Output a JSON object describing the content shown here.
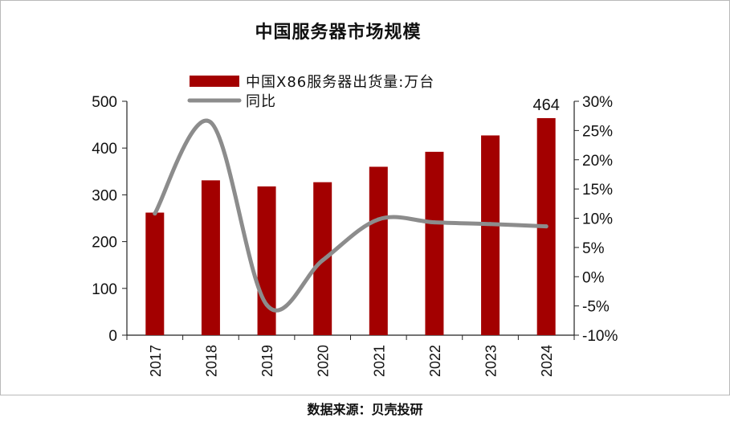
{
  "title": "中国服务器市场规模",
  "source": "数据来源：贝壳投研",
  "chart_data": {
    "type": "bar",
    "categories": [
      "2017",
      "2018",
      "2019",
      "2020",
      "2021",
      "2022",
      "2023",
      "2024"
    ],
    "series": [
      {
        "name": "中国X86服务器出货量:万台",
        "type": "bar",
        "axis": "left",
        "color": "#a30000",
        "values": [
          262,
          331,
          318,
          327,
          360,
          392,
          427,
          464
        ]
      },
      {
        "name": "同比",
        "type": "line",
        "axis": "right",
        "color": "#8c8c8c",
        "values": [
          0.108,
          0.264,
          -0.048,
          0.028,
          0.098,
          0.093,
          0.09,
          0.086
        ]
      }
    ],
    "data_labels": [
      {
        "category": "2024",
        "text": "464"
      }
    ],
    "y_left": {
      "min": 0,
      "max": 500,
      "ticks": [
        0,
        100,
        200,
        300,
        400,
        500
      ],
      "tick_labels": [
        "0",
        "100",
        "200",
        "300",
        "400",
        "500"
      ]
    },
    "y_right": {
      "min": -0.1,
      "max": 0.3,
      "ticks": [
        -0.1,
        -0.05,
        0,
        0.05,
        0.1,
        0.15,
        0.2,
        0.25,
        0.3
      ],
      "tick_labels": [
        "-10%",
        "-5%",
        "0%",
        "5%",
        "10%",
        "15%",
        "20%",
        "25%",
        "30%"
      ]
    },
    "grid": false,
    "legend_position": "top-left",
    "xlabel": "",
    "ylabel": ""
  }
}
